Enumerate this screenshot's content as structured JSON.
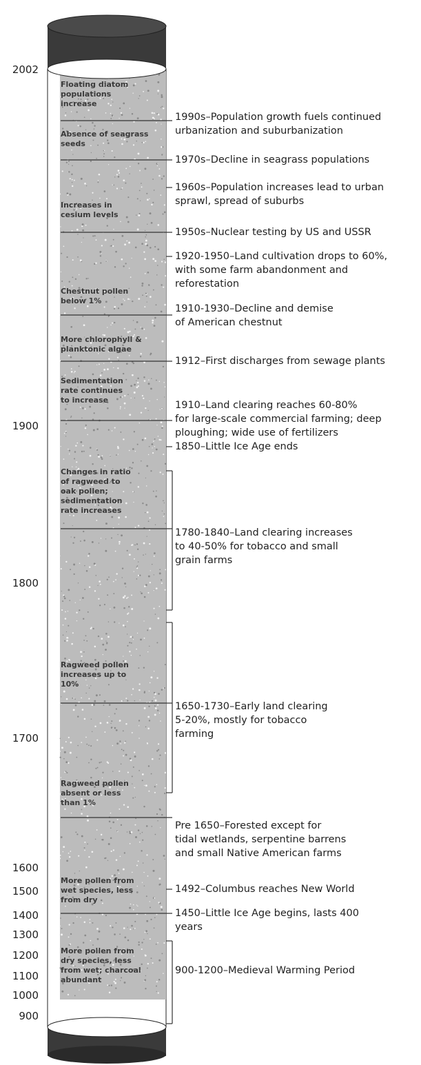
{
  "years": [
    "2002",
    "1900",
    "1800",
    "1700",
    "1600",
    "1500",
    "1400",
    "1300",
    "1200",
    "1100",
    "1000",
    "900"
  ],
  "core_labels": [
    "Floating diatom\npopulations\nincrease",
    "Absence of seagrass\nseeds",
    "Increases in\ncesium levels",
    "Chestnut pollen\nbelow 1%",
    "More chlorophyll &\nplanktonic algae",
    "Sedimentation\nrate continues\nto increase",
    "Changes in ratio\nof ragweed to\noak pollen;\nsedimentation\nrate increases",
    "Ragweed pollen\nincreases up to\n10%",
    "Ragweed pollen\nabsent or less\nthan 1%",
    "More pollen from\nwet species, less\nfrom dry",
    "More pollen from\ndry species, less\nfrom wet; charcoal\nabundant"
  ],
  "events": [
    "1990s–Population growth fuels continued\nurbanization and suburbanization",
    "1970s–Decline in seagrass populations",
    "1960s–Population increases lead to urban\nsprawl, spread of suburbs",
    "1950s–Nuclear testing by US and USSR",
    "1920-1950–Land cultivation drops to 60%,\nwith some farm abandonment and\nreforestation",
    "1910-1930–Decline and demise\nof American chestnut",
    "1912–First discharges from sewage plants",
    "1910–Land clearing reaches 60-80%\nfor large-scale commercial farming; deep\nploughing; wide use of fertilizers",
    "1850–Little Ice Age ends",
    "1780-1840–Land clearing increases\nto 40-50% for tobacco and small\ngrain farms",
    "1650-1730–Early land clearing\n5-20%, mostly for tobacco\nfarming",
    "Pre 1650–Forested except for\ntidal wetlands, serpentine barrens\nand small Native American farms",
    "1492–Columbus reaches New World",
    "1450–Little Ice Age begins, lasts 400\nyears",
    "900-1200–Medieval Warming Period"
  ]
}
